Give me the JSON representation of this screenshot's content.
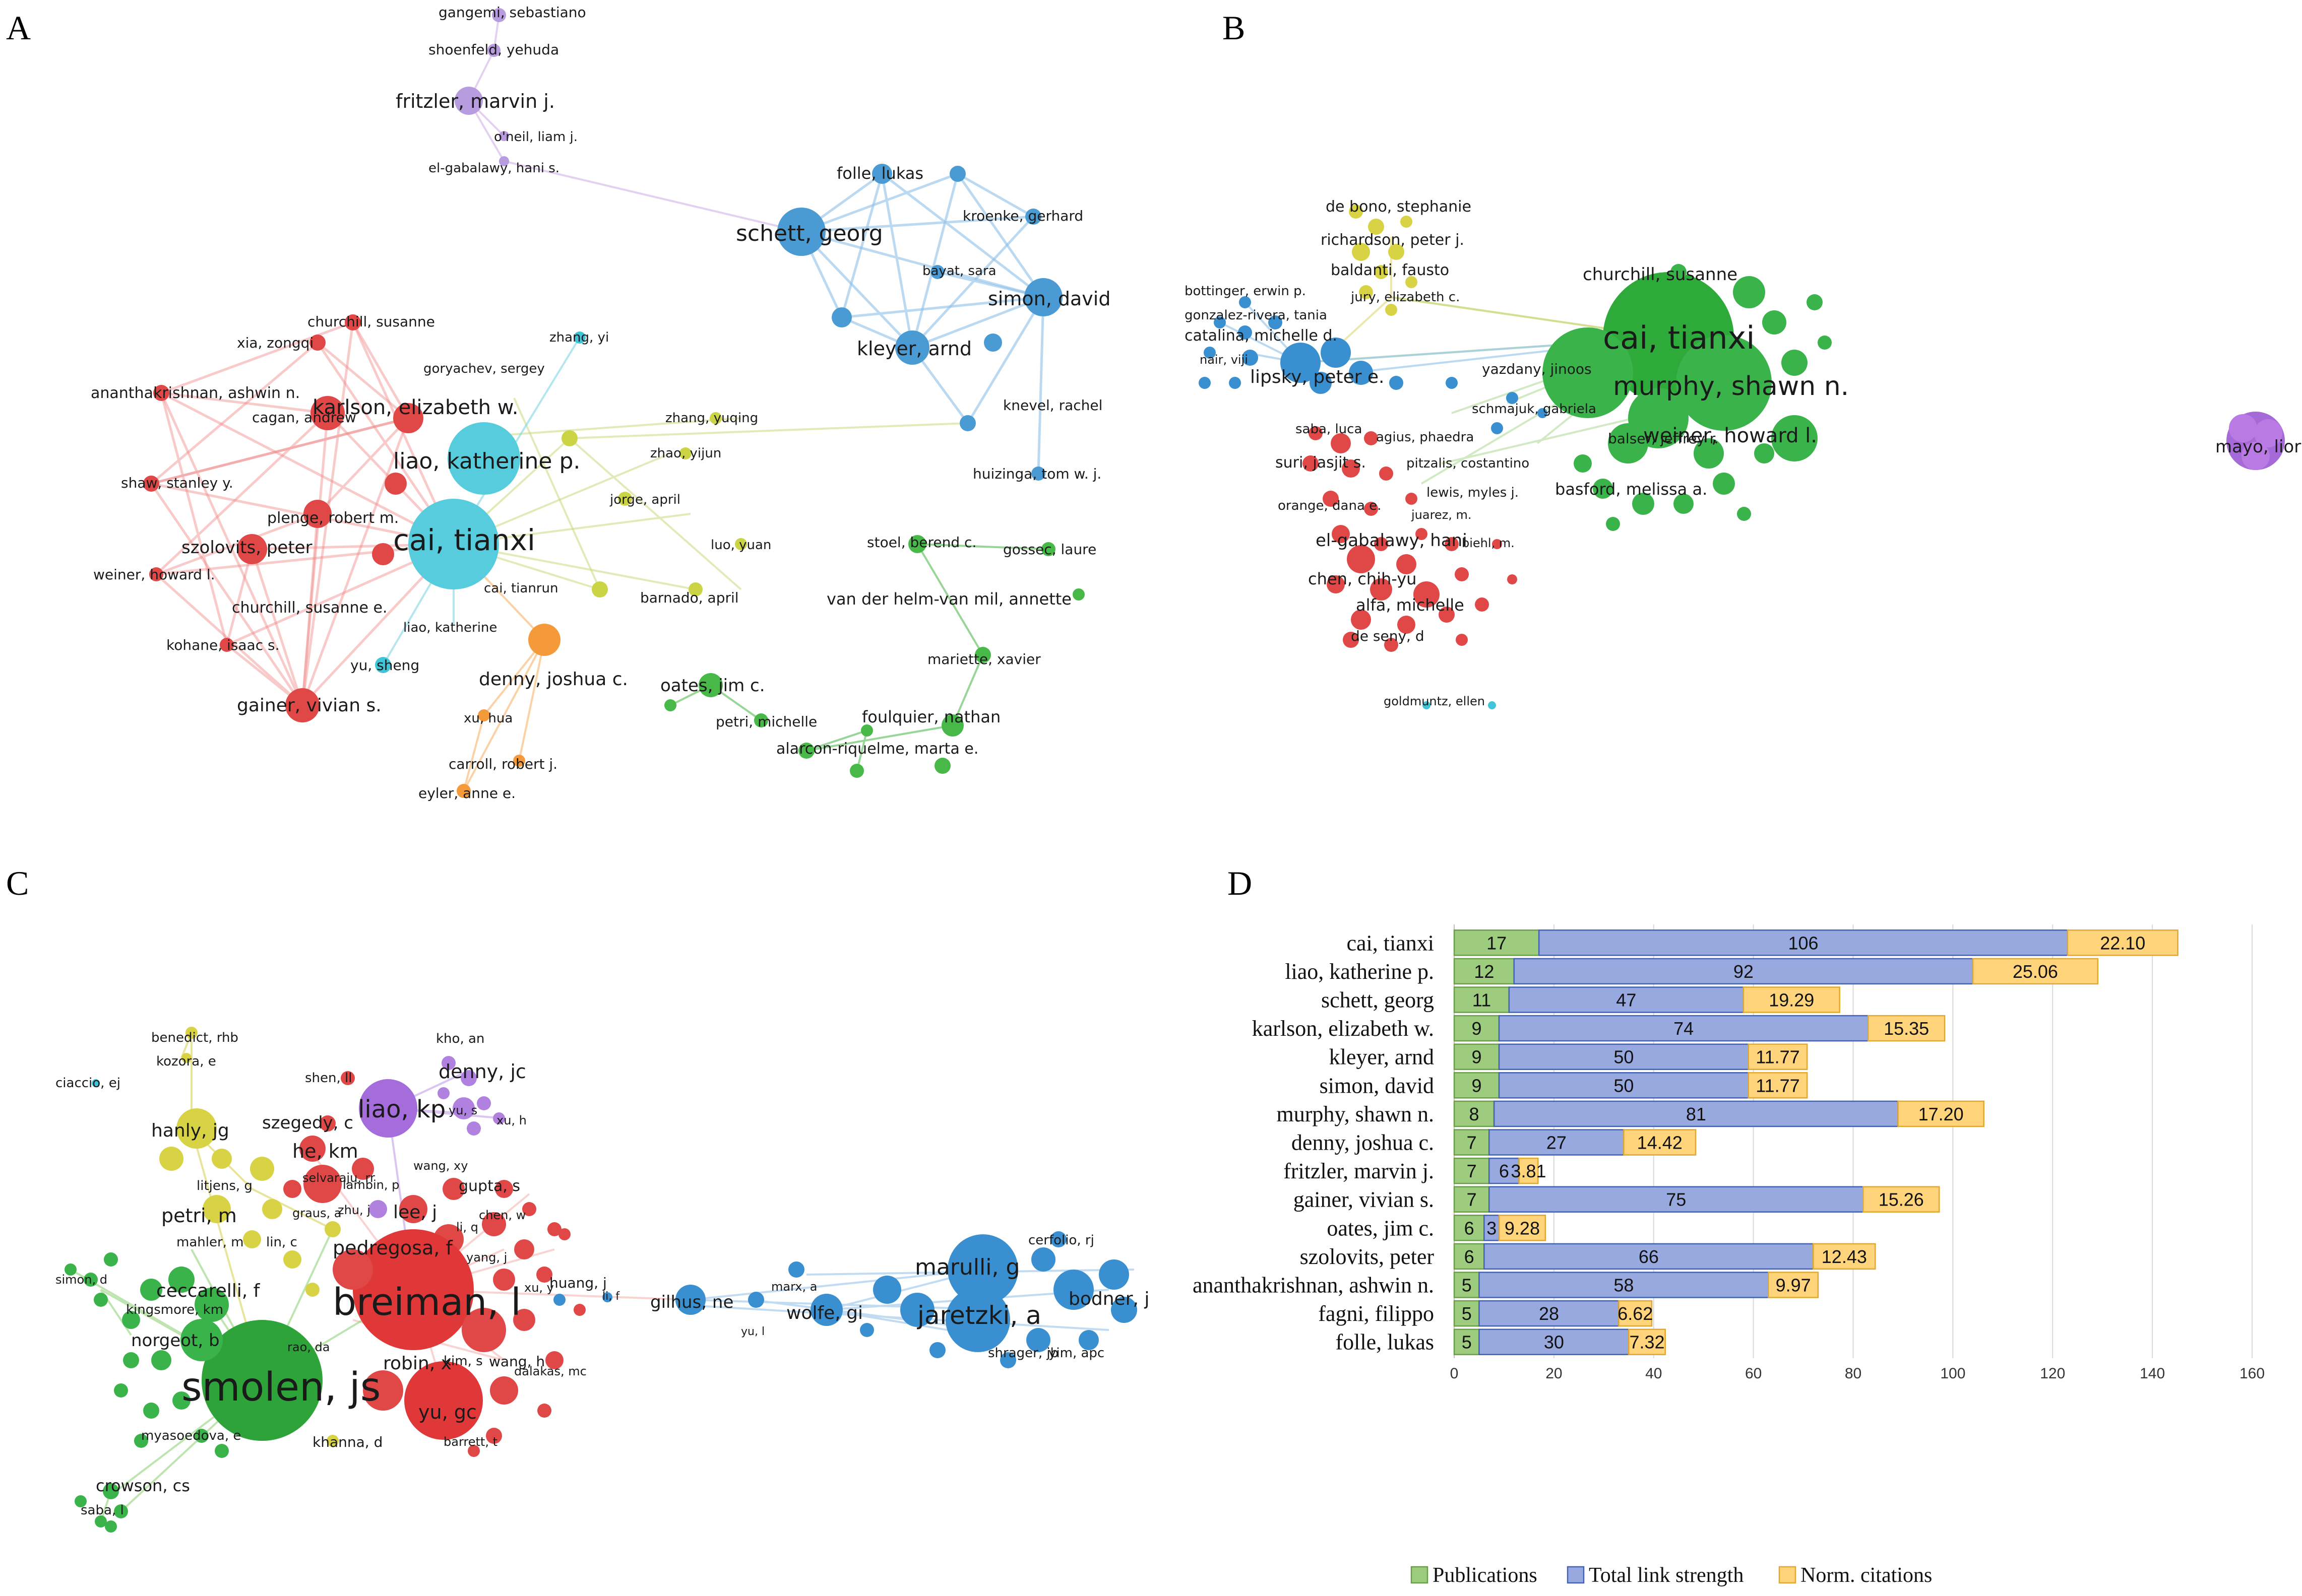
{
  "panels": {
    "A": {
      "letter": "A",
      "labels": [
        "gangemi, sebastiano",
        "shoenfeld, yehuda",
        "fritzler, marvin j.",
        "o'neil, liam j.",
        "el-gabalawy, hani s.",
        "folle, lukas",
        "schett, georg",
        "kroenke, gerhard",
        "bayat, sara",
        "simon, david",
        "kleyer, arnd",
        "knevel, rachel",
        "huizinga, tom w. j.",
        "churchill, susanne",
        "xia, zongqi",
        "zhang, yi",
        "goryachev, sergey",
        "ananthakrishnan, ashwin n.",
        "karlson, elizabeth w.",
        "zhang, yuqing",
        "zhao, yijun",
        "cagan, andrew",
        "liao, katherine p.",
        "shaw, stanley y.",
        "jorge, april",
        "plenge, robert m.",
        "szolovits, peter",
        "cai, tianxi",
        "luo, yuan",
        "weiner, howard l.",
        "stoel, berend c.",
        "gossec, laure",
        "cai, tianrun",
        "barnado, april",
        "churchill, susanne e.",
        "van der helm-van mil, annette",
        "kohane, isaac s.",
        "liao, katherine",
        "yu, sheng",
        "mariette, xavier",
        "denny, joshua c.",
        "gainer, vivian s.",
        "oates, jim c.",
        "xu, hua",
        "petri, michelle",
        "foulquier, nathan",
        "alarcon-riquelme, marta e.",
        "carroll, robert j.",
        "eyler, anne e."
      ]
    },
    "B": {
      "letter": "B",
      "labels": [
        "de bono, stephanie",
        "richardson, peter j.",
        "baldanti, fausto",
        "churchill, susanne",
        "bottinger, erwin p.",
        "jury, elizabeth c.",
        "gonzalez-rivera, tania",
        "catalina, michelle d.",
        "cai, tianxi",
        "nair, viji",
        "yazdany, jinoos",
        "lipsky, peter e.",
        "murphy, shawn n.",
        "schmajuk, gabriela",
        "saba, luca",
        "agius, phaedra",
        "balser, jeffrey r.",
        "weiner, howard l.",
        "mayo, lior",
        "suri, jasjit s.",
        "pitzalis, costantino",
        "basford, melissa a.",
        "lewis, myles j.",
        "orange, dana e.",
        "juarez, m.",
        "el-gabalawy, hani",
        "biehl, m.",
        "chen, chih-yu",
        "alfa, michelle",
        "de seny, d",
        "goldmuntz, ellen"
      ]
    },
    "C": {
      "letter": "C",
      "labels": [
        "kho, an",
        "benedict, rhb",
        "kozora, e",
        "denny, jc",
        "ciaccio, ej",
        "shen, ll",
        "liao, kp",
        "yu, s",
        "xu, h",
        "hanly, jg",
        "szegedy, c",
        "he, km",
        "selvaraju, rr",
        "lambin, p",
        "wang, xy",
        "litjens, g",
        "gupta, s",
        "graus, a",
        "zhu, j",
        "petri, m",
        "lee, j",
        "chen, w",
        "mahler, m",
        "lin, c",
        "li, q",
        "pedregosa, f",
        "yang, j",
        "marulli, g",
        "cerfolio, rj",
        "simon, d",
        "xu, y",
        "ceccarelli, f",
        "huang, j",
        "kingsmore, km",
        "breiman, l",
        "li, f",
        "gilhus, ne",
        "marx, a",
        "bodner, j",
        "wolfe, gi",
        "jaretzki, a",
        "norgeot, b",
        "yu, l",
        "rao, da",
        "wang, h",
        "shrager, jb",
        "yim, apc",
        "kim, s",
        "robin, x",
        "dalakas, mc",
        "smolen, js",
        "yu, gc",
        "myasoedova, e",
        "khanna, d",
        "barrett, t",
        "crowson, cs",
        "saba, l"
      ]
    },
    "D": {
      "letter": "D"
    }
  },
  "chart_data": {
    "type": "bar",
    "orientation": "horizontal",
    "stacked": true,
    "categories": [
      "cai, tianxi",
      "liao, katherine p.",
      "schett, georg",
      "karlson, elizabeth w.",
      "kleyer, arnd",
      "simon, david",
      "murphy, shawn n.",
      "denny, joshua c.",
      "fritzler, marvin j.",
      "gainer, vivian s.",
      "oates, jim c.",
      "szolovits, peter",
      "ananthakrishnan, ashwin n.",
      "fagni, filippo",
      "folle, lukas"
    ],
    "series": [
      {
        "name": "Publications",
        "color": "#9dcc7e",
        "stroke": "#6a9f4a",
        "values": [
          17,
          12,
          11,
          9,
          9,
          9,
          8,
          7,
          7,
          7,
          6,
          6,
          5,
          5,
          5
        ],
        "labels": [
          "17",
          "12",
          "11",
          "9",
          "9",
          "9",
          "8",
          "7",
          "7",
          "7",
          "6",
          "6",
          "5",
          "5",
          "5"
        ]
      },
      {
        "name": "Total link strength",
        "color": "#98a9e0",
        "stroke": "#4462b3",
        "values": [
          106,
          92,
          47,
          74,
          50,
          50,
          81,
          27,
          6,
          75,
          3,
          66,
          58,
          28,
          30
        ],
        "labels": [
          "106",
          "92",
          "47",
          "74",
          "50",
          "50",
          "81",
          "27",
          "6",
          "75",
          "3",
          "66",
          "58",
          "28",
          "30"
        ]
      },
      {
        "name": "Norm. citations",
        "color": "#ffd47a",
        "stroke": "#e2a72e",
        "values": [
          22.1,
          25.06,
          19.29,
          15.35,
          11.77,
          11.77,
          17.2,
          14.42,
          3.81,
          15.26,
          9.28,
          12.43,
          9.97,
          6.62,
          7.32
        ],
        "labels": [
          "22.10",
          "25.06",
          "19.29",
          "15.35",
          "11.77",
          "11.77",
          "17.20",
          "14.42",
          "3.81",
          "15.26",
          "9.28",
          "12.43",
          "9.97",
          "6.62",
          "7.32"
        ]
      }
    ],
    "xlim": [
      0,
      160
    ],
    "xticks": [
      "0",
      "20",
      "40",
      "60",
      "80",
      "100",
      "120",
      "140",
      "160"
    ],
    "legend_position": "bottom",
    "grid": true
  }
}
